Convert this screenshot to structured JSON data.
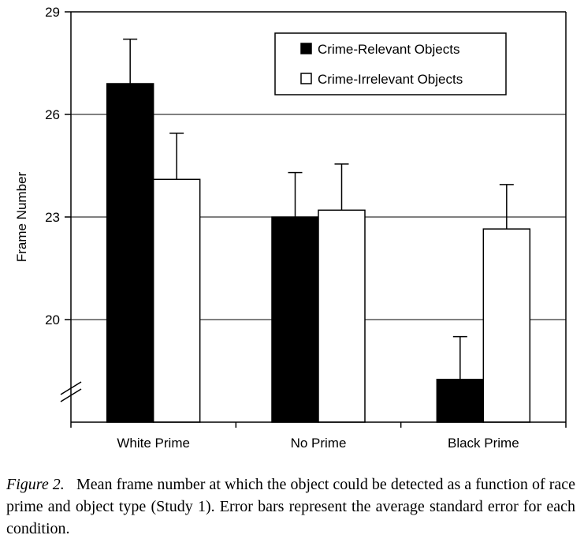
{
  "chart_data": {
    "type": "bar",
    "categories": [
      "White Prime",
      "No Prime",
      "Black Prime"
    ],
    "series": [
      {
        "name": "Crime-Relevant Objects",
        "values": [
          26.9,
          23.0,
          18.25
        ],
        "error": [
          1.3,
          1.3,
          1.25
        ],
        "color": "#000000"
      },
      {
        "name": "Crime-Irrelevant Objects",
        "values": [
          24.1,
          23.2,
          22.65
        ],
        "error": [
          1.35,
          1.35,
          1.3
        ],
        "color": "#ffffff"
      }
    ],
    "title": "",
    "xlabel": "",
    "ylabel": "Frame Number",
    "ylim": [
      17,
      29
    ],
    "yticks": [
      "20",
      "23",
      "26",
      "29"
    ],
    "axis_break": true,
    "grid": true,
    "legend_position": "top-right"
  },
  "caption": {
    "figure_label": "Figure 2.",
    "text": "Mean frame number at which the object could be detected as a function of race prime and object type (Study 1). Error bars represent the average standard error for each condition."
  }
}
